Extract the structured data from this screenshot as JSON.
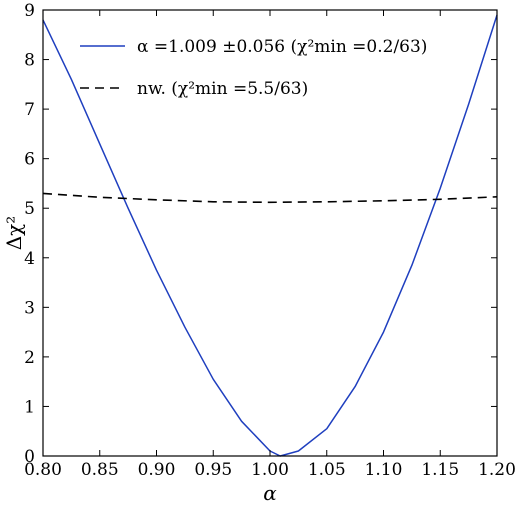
{
  "chart_data": {
    "type": "line",
    "xlabel": "α",
    "ylabel": "Δχ²",
    "xlim": [
      0.8,
      1.2
    ],
    "ylim": [
      0,
      9
    ],
    "x_ticks": [
      "0.80",
      "0.85",
      "0.90",
      "0.95",
      "1.00",
      "1.05",
      "1.10",
      "1.15",
      "1.20"
    ],
    "y_ticks": [
      "0",
      "1",
      "2",
      "3",
      "4",
      "5",
      "6",
      "7",
      "8",
      "9"
    ],
    "grid": false,
    "legend_position": "top-left",
    "series": [
      {
        "name": "α = 1.009 ± 0.056 (χ²min = 0.2/63)",
        "legend_text": "α =1.009 ±0.056 (χ²min =0.2/63)",
        "color": "#1f3fbf",
        "style": "solid",
        "x": [
          0.8,
          0.825,
          0.85,
          0.875,
          0.9,
          0.925,
          0.95,
          0.975,
          1.0,
          1.009,
          1.025,
          1.05,
          1.075,
          1.1,
          1.125,
          1.15,
          1.175,
          1.2
        ],
        "y": [
          8.8,
          7.6,
          6.3,
          5.0,
          3.75,
          2.6,
          1.55,
          0.7,
          0.1,
          0.0,
          0.1,
          0.55,
          1.4,
          2.5,
          3.85,
          5.4,
          7.1,
          8.9
        ]
      },
      {
        "name": "nw. (χ²min = 5.5/63)",
        "legend_text": "nw. (χ²min =5.5/63)",
        "color": "#000000",
        "style": "dashed",
        "x": [
          0.8,
          0.85,
          0.9,
          0.95,
          1.0,
          1.05,
          1.1,
          1.15,
          1.2
        ],
        "y": [
          5.3,
          5.22,
          5.17,
          5.13,
          5.12,
          5.13,
          5.15,
          5.18,
          5.23
        ]
      }
    ]
  }
}
